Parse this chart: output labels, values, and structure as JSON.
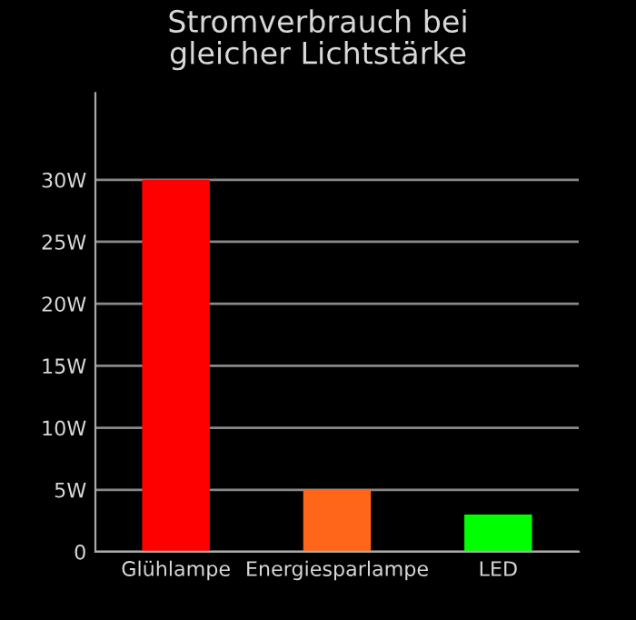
{
  "chart_data": {
    "type": "bar",
    "title": "Stromverbrauch bei\ngleicher Lichtstärke",
    "categories": [
      "Glühlampe",
      "Energiesparlampe",
      "LED"
    ],
    "values": [
      30,
      5,
      3
    ],
    "colors": [
      "#ff0000",
      "#ff661a",
      "#00ff00"
    ],
    "ylim": [
      0,
      37
    ],
    "yticks": [
      {
        "value": 0,
        "label": "0"
      },
      {
        "value": 5,
        "label": "5W"
      },
      {
        "value": 10,
        "label": "10W"
      },
      {
        "value": 15,
        "label": "15W"
      },
      {
        "value": 20,
        "label": "20W"
      },
      {
        "value": 25,
        "label": "25W"
      },
      {
        "value": 30,
        "label": "30W"
      }
    ],
    "grid": "y"
  }
}
